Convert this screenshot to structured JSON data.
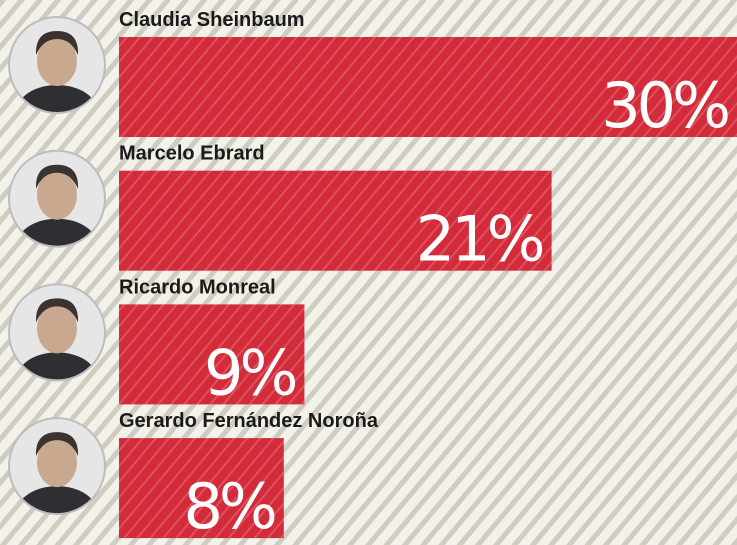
{
  "chart_data": {
    "type": "bar",
    "orientation": "horizontal",
    "categories": [
      "Claudia Sheinbaum",
      "Marcelo Ebrard",
      "Ricardo Monreal",
      "Gerardo Fernández Noroña"
    ],
    "values": [
      30,
      21,
      9,
      8
    ],
    "value_labels": [
      "30%",
      "21%",
      "9%",
      "8%"
    ],
    "color": "#d42b3a"
  }
}
